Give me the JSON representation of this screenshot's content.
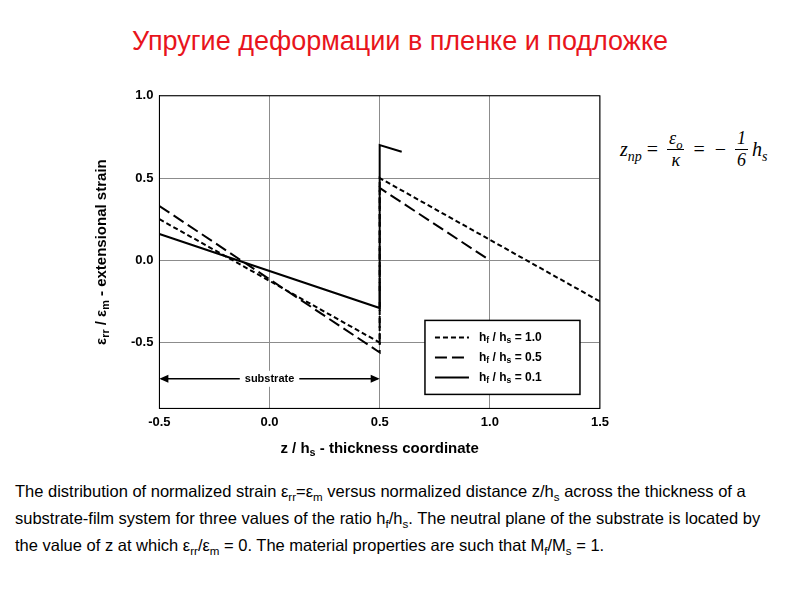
{
  "title": "Упругие деформации в пленке и подложке",
  "formula": [
    {
      "rich": [
        "z",
        {
          "sub": "np"
        }
      ]
    },
    {
      "text": "="
    },
    {
      "frac": [
        [
          "ε",
          {
            "sub": "o"
          }
        ],
        [
          "κ"
        ]
      ]
    },
    {
      "text": "="
    },
    {
      "text": "−"
    },
    {
      "frac": [
        [
          "1"
        ],
        [
          "6"
        ]
      ]
    },
    {
      "rich": [
        "h",
        {
          "sub": "s"
        }
      ]
    }
  ],
  "caption": [
    "The distribution of normalized strain ε",
    {
      "sub": "rr"
    },
    "=ε",
    {
      "sub": "m"
    },
    " versus normalized distance z/h",
    {
      "sub": "s"
    },
    " across the thickness of a substrate-film system for three values of the ratio h",
    {
      "sub": "f"
    },
    "/h",
    {
      "sub": "s"
    },
    ". The neutral plane of the substrate is located by the value of z at which ε",
    {
      "sub": "rr"
    },
    "/ε",
    {
      "sub": "m"
    },
    " = 0. The material properties are such that M",
    {
      "sub": "f"
    },
    "/M",
    {
      "sub": "s"
    },
    " = 1."
  ],
  "chart_data": {
    "type": "line",
    "x_label": [
      "z / h",
      {
        "sub": "s"
      },
      " - thickness coordinate"
    ],
    "y_label": [
      "ε",
      {
        "sub": "rr"
      },
      " / ε",
      {
        "sub": "m"
      },
      " - extensional strain"
    ],
    "xlim": [
      -0.5,
      1.5
    ],
    "xticks": [
      -0.5,
      {
        "value": 0,
        "label": "0.0"
      },
      0.5,
      {
        "value": 1,
        "label": "1.0"
      },
      1.5
    ],
    "ylim": [
      -0.9,
      1.0
    ],
    "yticks": [
      {
        "value": 1,
        "label": "1.0"
      },
      0.5,
      {
        "value": 0,
        "label": "0.0"
      },
      -0.5
    ],
    "grid": true,
    "legend": "lower right",
    "series": [
      {
        "name": [
          "h",
          {
            "sub": "f"
          },
          " / h",
          {
            "sub": "s"
          },
          " = 1.0"
        ],
        "color": "#000000",
        "line_style": "short_dash",
        "x": [
          -0.5,
          0.5,
          0.5,
          1.5
        ],
        "values": [
          0.25,
          -0.5,
          0.5,
          -0.25
        ]
      },
      {
        "name": [
          "h",
          {
            "sub": "f"
          },
          " / h",
          {
            "sub": "s"
          },
          " = 0.5"
        ],
        "color": "#000000",
        "line_style": "long_dash",
        "x": [
          -0.5,
          0.5,
          0.5,
          1.0
        ],
        "values": [
          0.33,
          -0.56,
          0.44,
          0.0
        ]
      },
      {
        "name": [
          "h",
          {
            "sub": "f"
          },
          " / h",
          {
            "sub": "s"
          },
          " = 0.1"
        ],
        "color": "#000000",
        "line_style": "solid",
        "x": [
          -0.5,
          0.5,
          0.5,
          0.6
        ],
        "values": [
          0.16,
          -0.29,
          0.7,
          0.66
        ]
      }
    ],
    "annotations": [
      {
        "text": "substrate",
        "x": [
          -0.5,
          0.5
        ],
        "y": -0.72
      }
    ]
  }
}
